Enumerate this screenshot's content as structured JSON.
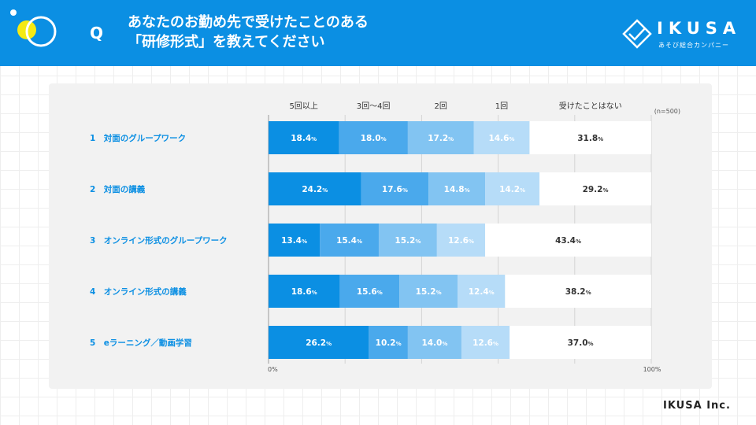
{
  "header": {
    "q_label": "Q",
    "title_line1": "あなたのお勤め先で受けたことのある",
    "title_line2": "「研修形式」を教えてください",
    "logo_text": "IKUSA",
    "logo_sub": "あそび総合カンパニー"
  },
  "footer": {
    "company": "IKUSA Inc."
  },
  "colors": {
    "header_bg": "#0b8fe3",
    "series": [
      "#0b8fe3",
      "#4aa9ec",
      "#82c4f2",
      "#b6dcf8",
      "#ffffff"
    ]
  },
  "chart_data": {
    "type": "bar",
    "orientation": "horizontal-stacked-100",
    "title": "",
    "n_label": "(n=500)",
    "xlim": [
      0,
      100
    ],
    "x_tick_labels": [
      "0%",
      "100%"
    ],
    "categories": [
      "1　対面のグループワーク",
      "2　対面の講義",
      "3　オンライン形式のグループワーク",
      "4　オンライン形式の講義",
      "5　eラーニング／動画学習"
    ],
    "series": [
      {
        "name": "5回以上",
        "values": [
          18.4,
          24.2,
          13.4,
          18.6,
          26.2
        ]
      },
      {
        "name": "3回〜4回",
        "values": [
          18.0,
          17.6,
          15.4,
          15.6,
          10.2
        ]
      },
      {
        "name": "2回",
        "values": [
          17.2,
          14.8,
          15.2,
          15.2,
          14.0
        ]
      },
      {
        "name": "1回",
        "values": [
          14.6,
          14.2,
          12.6,
          12.4,
          12.6
        ]
      },
      {
        "name": "受けたことはない",
        "values": [
          31.8,
          29.2,
          43.4,
          38.2,
          37.0
        ]
      }
    ]
  }
}
